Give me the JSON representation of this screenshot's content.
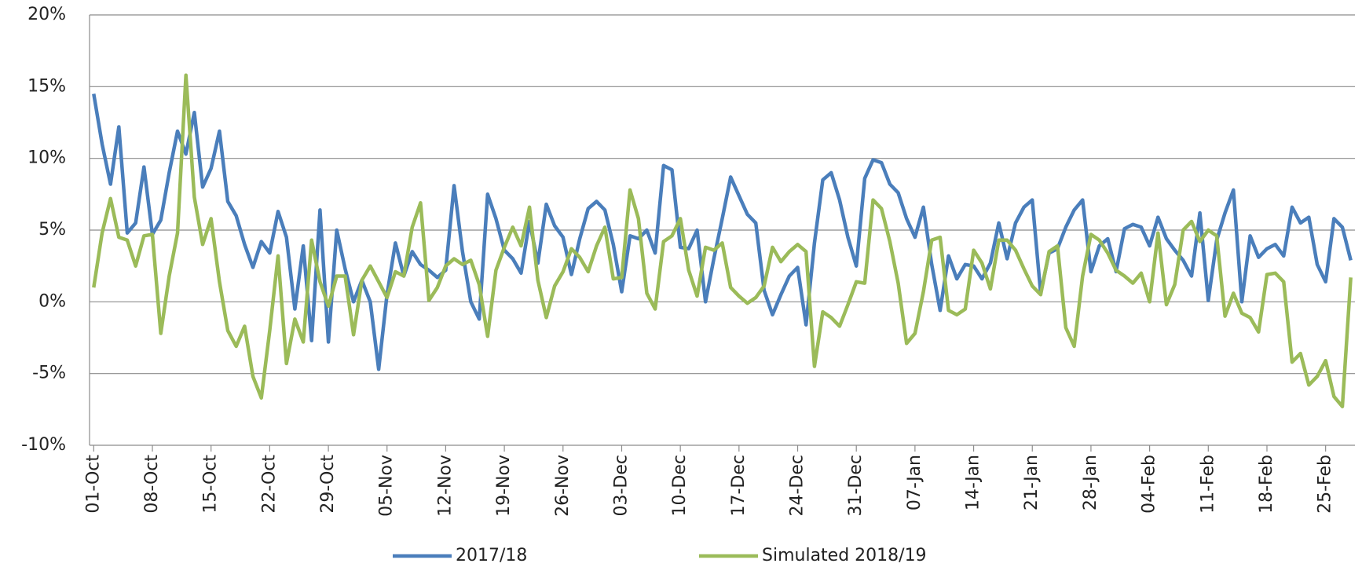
{
  "chart_data": {
    "type": "line",
    "categories": [
      "01-Oct",
      null,
      null,
      null,
      null,
      null,
      null,
      "08-Oct",
      null,
      null,
      null,
      null,
      null,
      null,
      "15-Oct",
      null,
      null,
      null,
      null,
      null,
      null,
      "22-Oct",
      null,
      null,
      null,
      null,
      null,
      null,
      "29-Oct",
      null,
      null,
      null,
      null,
      null,
      null,
      "05-Nov",
      null,
      null,
      null,
      null,
      null,
      null,
      "12-Nov",
      null,
      null,
      null,
      null,
      null,
      null,
      "19-Nov",
      null,
      null,
      null,
      null,
      null,
      null,
      "26-Nov",
      null,
      null,
      null,
      null,
      null,
      null,
      "03-Dec",
      null,
      null,
      null,
      null,
      null,
      null,
      "10-Dec",
      null,
      null,
      null,
      null,
      null,
      null,
      "17-Dec",
      null,
      null,
      null,
      null,
      null,
      null,
      "24-Dec",
      null,
      null,
      null,
      null,
      null,
      null,
      "31-Dec",
      null,
      null,
      null,
      null,
      null,
      null,
      "07-Jan",
      null,
      null,
      null,
      null,
      null,
      null,
      "14-Jan",
      null,
      null,
      null,
      null,
      null,
      null,
      "21-Jan",
      null,
      null,
      null,
      null,
      null,
      null,
      "28-Jan",
      null,
      null,
      null,
      null,
      null,
      null,
      "04-Feb",
      null,
      null,
      null,
      null,
      null,
      null,
      "11-Feb",
      null,
      null,
      null,
      null,
      null,
      null,
      "18-Feb",
      null,
      null,
      null,
      null,
      null,
      null,
      "25-Feb",
      null,
      null,
      null
    ],
    "series": [
      {
        "name": "2017/18",
        "color": "#4a7ebb",
        "values": [
          14.5,
          11,
          8.2,
          12.2,
          4.8,
          5.5,
          9.4,
          4.7,
          5.7,
          9,
          11.9,
          10.3,
          13.2,
          8,
          9.3,
          11.9,
          7,
          6,
          4,
          2.4,
          4.2,
          3.4,
          6.3,
          4.5,
          -0.5,
          3.9,
          -2.7,
          6.4,
          -2.8,
          5,
          2.3,
          0,
          1.5,
          0,
          -4.7,
          0.5,
          4.1,
          1.8,
          3.5,
          2.6,
          2.2,
          1.7,
          2.2,
          8.1,
          3.5,
          0,
          -1.2,
          7.5,
          5.8,
          3.6,
          3.0,
          2.0,
          5.6,
          2.7,
          6.8,
          5.3,
          4.5,
          1.9,
          4.4,
          6.5,
          7,
          6.4,
          4,
          0.7,
          4.6,
          4.4,
          5,
          3.4,
          9.5,
          9.2,
          3.8,
          3.7,
          5,
          0,
          3,
          5.8,
          8.7,
          7.4,
          6.1,
          5.5,
          0.8,
          -0.9,
          0.5,
          1.8,
          2.4,
          -1.6,
          4.1,
          8.5,
          9,
          7.1,
          4.5,
          2.5,
          8.6,
          9.9,
          9.7,
          8.2,
          7.6,
          5.8,
          4.5,
          6.6,
          2.6,
          -0.6,
          3.2,
          1.6,
          2.6,
          2.5,
          1.6,
          2.7,
          5.5,
          3,
          5.5,
          6.6,
          7.1,
          0.6,
          3.4,
          3.7,
          5.2,
          6.4,
          7.1,
          2.1,
          3.9,
          4.4,
          2.1,
          5.1,
          5.4,
          5.2,
          3.9,
          5.9,
          4.4,
          3.6,
          2.9,
          1.8,
          6.2,
          0.1,
          4.3,
          6.2,
          7.8,
          0,
          4.6,
          3.1,
          3.7,
          4,
          3.2,
          6.6,
          5.5,
          5.9,
          2.6,
          1.4,
          5.8,
          5.2,
          2.9
        ]
      },
      {
        "name": "Simulated 2018/19",
        "color": "#9bbb59",
        "values": [
          1,
          4.8,
          7.2,
          4.5,
          4.3,
          2.5,
          4.6,
          4.7,
          -2.2,
          1.8,
          4.8,
          15.8,
          7.3,
          4,
          5.8,
          1.4,
          -2,
          -3.1,
          -1.7,
          -5.2,
          -6.7,
          -2,
          3.2,
          -4.3,
          -1.2,
          -2.8,
          4.3,
          1.4,
          -0.3,
          1.8,
          1.8,
          -2.3,
          1.5,
          2.5,
          1.4,
          0.3,
          2.1,
          1.8,
          5.2,
          6.9,
          0.1,
          1,
          2.5,
          3,
          2.6,
          2.9,
          1.2,
          -2.4,
          2.2,
          3.8,
          5.2,
          3.9,
          6.6,
          1.5,
          -1.1,
          1.1,
          2.1,
          3.7,
          3.1,
          2.1,
          3.9,
          5.2,
          1.6,
          1.7,
          7.8,
          5.8,
          0.6,
          -0.5,
          4.2,
          4.6,
          5.8,
          2.2,
          0.4,
          3.8,
          3.6,
          4.1,
          1,
          0.4,
          -0.1,
          0.3,
          1.1,
          3.8,
          2.8,
          3.5,
          4,
          3.5,
          -4.5,
          -0.7,
          -1.1,
          -1.7,
          -0.2,
          1.4,
          1.3,
          7.1,
          6.5,
          4.2,
          1.3,
          -2.9,
          -2.2,
          0.7,
          4.3,
          4.5,
          -0.6,
          -0.9,
          -0.5,
          3.6,
          2.7,
          0.9,
          4.3,
          4.3,
          3.6,
          2.3,
          1.1,
          0.5,
          3.5,
          3.9,
          -1.8,
          -3.1,
          1.8,
          4.7,
          4.3,
          3.4,
          2.2,
          1.8,
          1.3,
          2,
          0,
          4.8,
          -0.2,
          1.2,
          5,
          5.6,
          4.2,
          5,
          4.6,
          -1,
          0.6,
          -0.8,
          -1.1,
          -2.1,
          1.9,
          2,
          1.4,
          -4.2,
          -3.6,
          -5.8,
          -5.2,
          -4.1,
          -6.6,
          -7.3,
          1.7
        ]
      }
    ],
    "ylim": [
      -10,
      20
    ],
    "yticks": [
      {
        "value": -10,
        "label": "-10%"
      },
      {
        "value": -5,
        "label": "-5%"
      },
      {
        "value": 0,
        "label": "0%"
      },
      {
        "value": 5,
        "label": "5%"
      },
      {
        "value": 10,
        "label": "10%"
      },
      {
        "value": 15,
        "label": "15%"
      },
      {
        "value": 20,
        "label": "20%"
      }
    ],
    "grid": true
  }
}
